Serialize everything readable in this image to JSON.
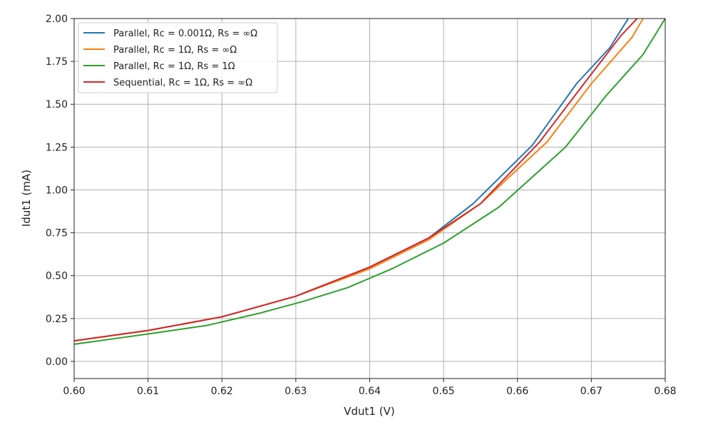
{
  "chart_data": {
    "type": "line",
    "xlabel": "Vdut1 (V)",
    "ylabel": "Idut1 (mA)",
    "xlim": [
      0.6,
      0.68
    ],
    "ylim": [
      -0.1,
      2.0
    ],
    "grid": true,
    "legend_position": "top-left",
    "x_ticks": [
      "0.60",
      "0.61",
      "0.62",
      "0.63",
      "0.64",
      "0.65",
      "0.66",
      "0.67",
      "0.68"
    ],
    "y_ticks": [
      "0.00",
      "0.25",
      "0.50",
      "0.75",
      "1.00",
      "1.25",
      "1.50",
      "1.75",
      "2.00"
    ],
    "series": [
      {
        "name": "Parallel, Rc = 0.001Ω, Rs = ∞Ω",
        "color": "#1f77b4",
        "x": [
          0.6,
          0.61,
          0.62,
          0.63,
          0.64,
          0.648,
          0.654,
          0.662,
          0.668,
          0.6725,
          0.675
        ],
        "y": [
          0.12,
          0.18,
          0.26,
          0.38,
          0.55,
          0.72,
          0.92,
          1.26,
          1.62,
          1.83,
          2.0
        ]
      },
      {
        "name": "Parallel, Rc = 1Ω, Rs = ∞Ω",
        "color": "#ff7f0e",
        "x": [
          0.6,
          0.61,
          0.62,
          0.63,
          0.64,
          0.648,
          0.655,
          0.664,
          0.67,
          0.6755,
          0.677
        ],
        "y": [
          0.12,
          0.18,
          0.26,
          0.38,
          0.54,
          0.71,
          0.92,
          1.28,
          1.62,
          1.89,
          2.0
        ]
      },
      {
        "name": "Parallel, Rc = 1Ω, Rs = 1Ω",
        "color": "#2ca02c",
        "x": [
          0.6,
          0.605,
          0.61,
          0.618,
          0.625,
          0.631,
          0.637,
          0.643,
          0.65,
          0.6575,
          0.6665,
          0.672,
          0.677,
          0.68
        ],
        "y": [
          0.1,
          0.13,
          0.16,
          0.21,
          0.28,
          0.35,
          0.43,
          0.54,
          0.69,
          0.9,
          1.25,
          1.55,
          1.79,
          2.0
        ]
      },
      {
        "name": "Sequential, Rc = 1Ω, Rs = ∞Ω",
        "color": "#d62728",
        "x": [
          0.6,
          0.61,
          0.62,
          0.63,
          0.64,
          0.648,
          0.655,
          0.663,
          0.669,
          0.674,
          0.6762
        ],
        "y": [
          0.12,
          0.18,
          0.26,
          0.38,
          0.55,
          0.72,
          0.92,
          1.28,
          1.62,
          1.9,
          2.0
        ]
      }
    ]
  }
}
